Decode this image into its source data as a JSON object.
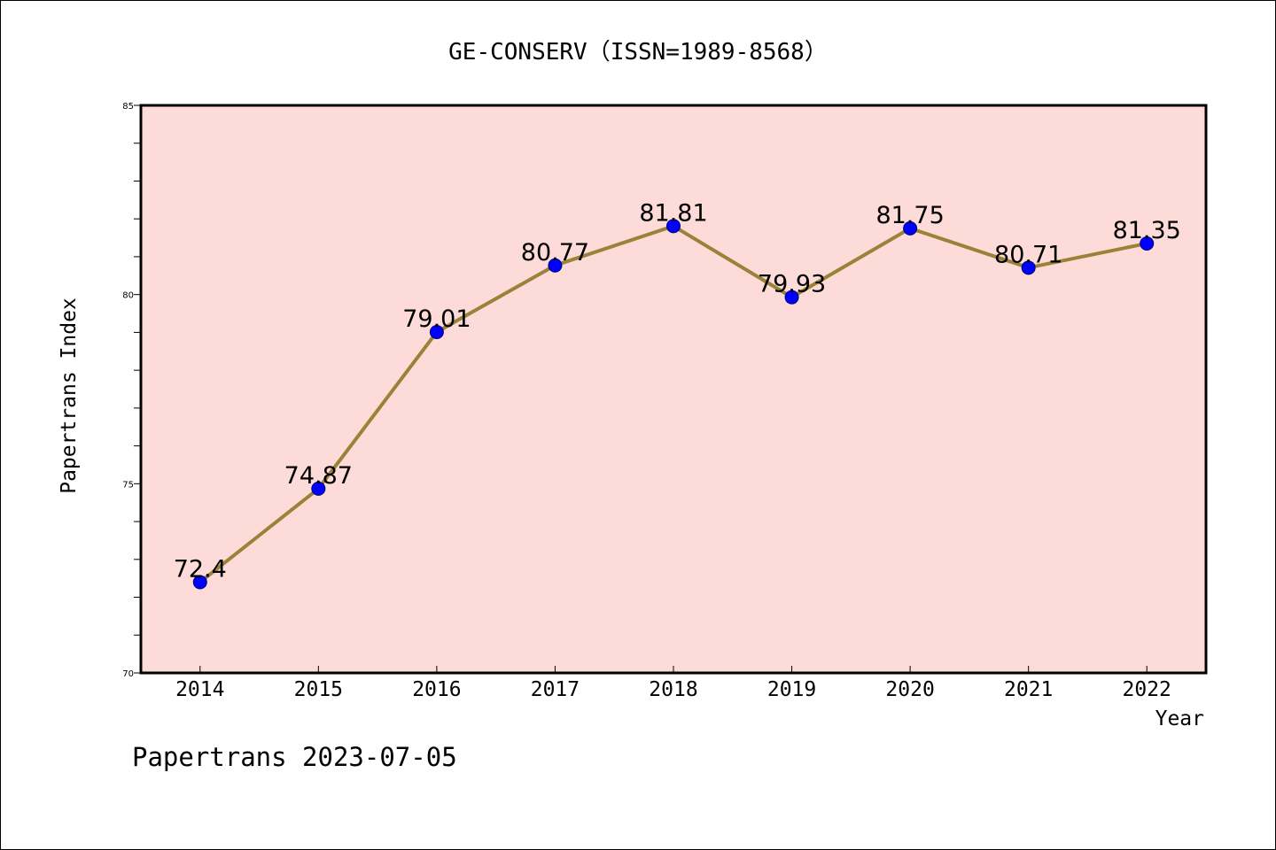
{
  "chart_data": {
    "type": "line",
    "title": "GE-CONSERV（ISSN=1989-8568）",
    "xlabel": "Year",
    "ylabel": "Papertrans Index",
    "categories": [
      "2014",
      "2015",
      "2016",
      "2017",
      "2018",
      "2019",
      "2020",
      "2021",
      "2022"
    ],
    "values": [
      72.4,
      74.87,
      79.01,
      80.77,
      81.81,
      79.93,
      81.75,
      80.71,
      81.35
    ],
    "data_labels": [
      "72.4",
      "74.87",
      "79.01",
      "80.77",
      "81.81",
      "79.93",
      "81.75",
      "80.71",
      "81.35"
    ],
    "ylim": [
      70,
      85
    ],
    "y_ticks": [
      "70",
      "75",
      "80",
      "85"
    ],
    "grid": false,
    "legend": "none",
    "footer": "Papertrans 2023-07-05",
    "colors": {
      "plot_background": "#fddbd8",
      "line": "#9a8338",
      "marker": "#0000ff",
      "axis": "#000000"
    }
  }
}
